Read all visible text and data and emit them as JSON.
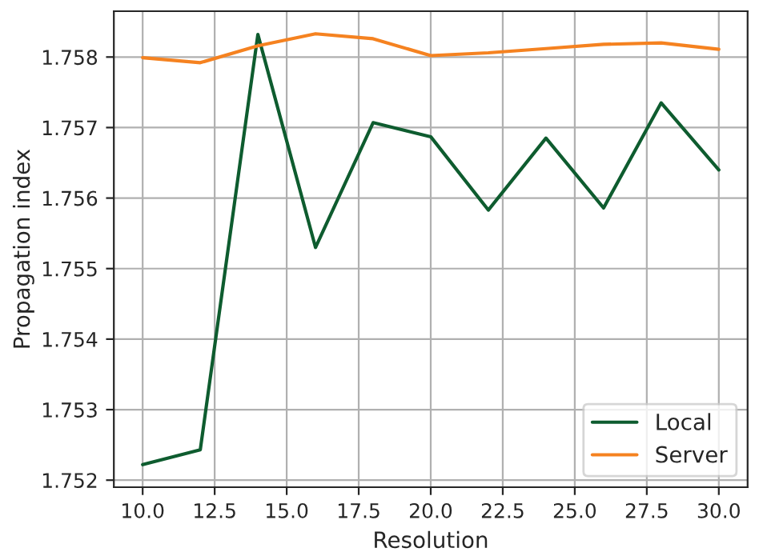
{
  "chart_data": {
    "type": "line",
    "xlabel": "Resolution",
    "ylabel": "Propagation index",
    "x": [
      10,
      12,
      14,
      16,
      18,
      20,
      22,
      24,
      26,
      28,
      30
    ],
    "series": [
      {
        "name": "Local",
        "color": "#0e5c2f",
        "values": [
          1.75222,
          1.75243,
          1.75832,
          1.7553,
          1.75707,
          1.75687,
          1.75583,
          1.75685,
          1.75586,
          1.75735,
          1.7564
        ]
      },
      {
        "name": "Server",
        "color": "#f58220",
        "values": [
          1.75799,
          1.75792,
          1.75816,
          1.75833,
          1.75826,
          1.75802,
          1.75806,
          1.75812,
          1.75818,
          1.7582,
          1.75811
        ]
      }
    ],
    "xlim": [
      9,
      31
    ],
    "ylim": [
      1.7519,
      1.75865
    ],
    "xticks": [
      {
        "value": 10,
        "label": "10.0"
      },
      {
        "value": 12.5,
        "label": "12.5"
      },
      {
        "value": 15,
        "label": "15.0"
      },
      {
        "value": 17.5,
        "label": "17.5"
      },
      {
        "value": 20,
        "label": "20.0"
      },
      {
        "value": 22.5,
        "label": "22.5"
      },
      {
        "value": 25,
        "label": "25.0"
      },
      {
        "value": 27.5,
        "label": "27.5"
      },
      {
        "value": 30,
        "label": "30.0"
      }
    ],
    "yticks": [
      {
        "value": 1.752,
        "label": "1.752"
      },
      {
        "value": 1.753,
        "label": "1.753"
      },
      {
        "value": 1.754,
        "label": "1.754"
      },
      {
        "value": 1.755,
        "label": "1.755"
      },
      {
        "value": 1.756,
        "label": "1.756"
      },
      {
        "value": 1.757,
        "label": "1.757"
      },
      {
        "value": 1.758,
        "label": "1.758"
      }
    ],
    "grid": true,
    "legend": "bottom right"
  }
}
